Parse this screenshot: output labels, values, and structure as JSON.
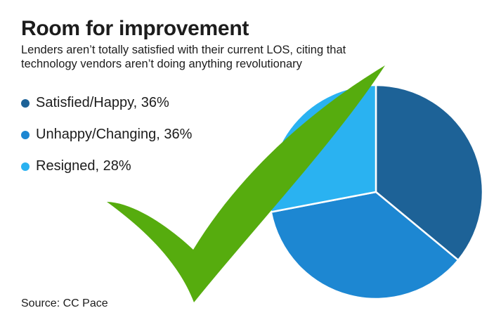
{
  "header": {
    "title": "Room for improvement",
    "subtitle_line1": "Lenders aren’t totally satisfied with their current LOS, citing that",
    "subtitle_line2": "technology vendors aren’t doing anything revolutionary"
  },
  "legend": {
    "items": [
      {
        "label": "Satisfied/Happy, 36%"
      },
      {
        "label": "Unhappy/Changing, 36%"
      },
      {
        "label": "Resigned, 28%"
      }
    ]
  },
  "source": {
    "text": "Source: CC Pace"
  },
  "colors": {
    "satisfied_blue": "#1d6297",
    "unhappy_blue": "#1d87d2",
    "resigned_blue": "#2ab2f1",
    "checkmark_green": "#56ac0e",
    "slice_divider": "#ffffff",
    "text": "#1c1c1c",
    "background": "#ffffff"
  },
  "chart_data": {
    "type": "pie",
    "title": "Room for improvement",
    "categories": [
      "Satisfied/Happy",
      "Unhappy/Changing",
      "Resigned"
    ],
    "values": [
      36,
      36,
      28
    ],
    "unit": "%",
    "colors": [
      "#1d6297",
      "#1d87d2",
      "#2ab2f1"
    ],
    "start_angle_deg": 0,
    "direction": "clockwise",
    "legend_position": "left",
    "annotations": [
      "green checkmark overlay"
    ]
  }
}
